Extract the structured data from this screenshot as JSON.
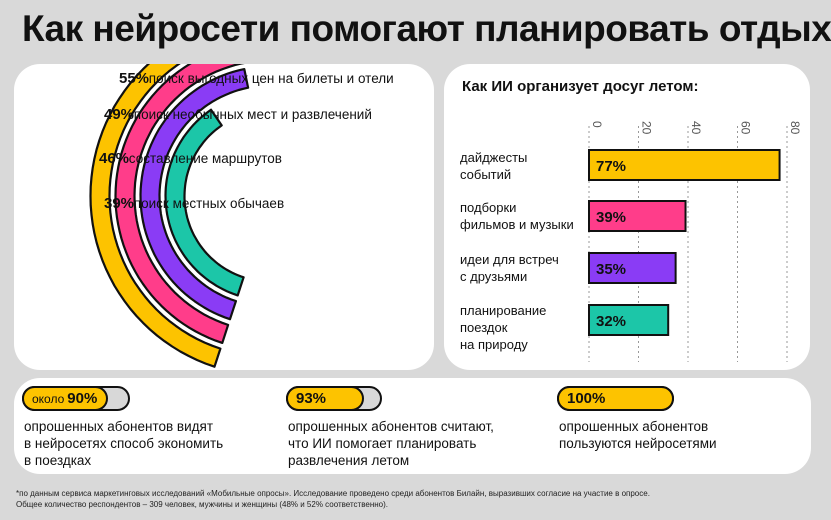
{
  "title": "Как нейросети помогают планировать отдых",
  "chart_data": [
    {
      "type": "radial bar",
      "series": [
        {
          "value": 55,
          "value_label": "55%",
          "label": "поиск выгодных цен на билеты и отели",
          "color": "#fdc300"
        },
        {
          "value": 49,
          "value_label": "49%",
          "label": "поиск необычных мест и развлечений",
          "color": "#ff3d8a"
        },
        {
          "value": 46,
          "value_label": "46%",
          "label": "составление маршрутов",
          "color": "#8a3cf5"
        },
        {
          "value": 39,
          "value_label": "39%",
          "label": "поиск местных обычаев",
          "color": "#1cc6a8"
        }
      ]
    },
    {
      "type": "bar",
      "orientation": "horizontal",
      "title": "Как ИИ организует досуг летом:",
      "xlim": [
        0,
        80
      ],
      "ticks": [
        "0",
        "20",
        "40",
        "60",
        "80"
      ],
      "categories": [
        [
          "дайджесты",
          "событий"
        ],
        [
          "подборки",
          "фильмов и музыки"
        ],
        [
          "идеи для встреч",
          "с друзьями"
        ],
        [
          "планирование",
          "поездок",
          "на природу"
        ]
      ],
      "values": [
        77,
        39,
        35,
        32
      ],
      "value_labels": [
        "77%",
        "39%",
        "35%",
        "32%"
      ],
      "colors": [
        "#fdc300",
        "#ff3d8a",
        "#8a3cf5",
        "#1cc6a8"
      ],
      "grid": "vertical dashed"
    }
  ],
  "stats": [
    {
      "prefix": "около",
      "value": "90%",
      "fraction": 0.9,
      "lines": [
        "опрошенных абонентов видят",
        "в нейросетях способ экономить",
        "в поездках"
      ]
    },
    {
      "prefix": "",
      "value": "93%",
      "fraction": 0.93,
      "lines": [
        "опрошенных абонентов считают,",
        "что ИИ помогает планировать",
        "развлечения летом"
      ]
    },
    {
      "prefix": "",
      "value": "100%",
      "fraction": 1.0,
      "lines": [
        "опрошенных абонентов",
        "пользуются нейросетями"
      ]
    }
  ],
  "footnote": [
    "*по данным сервиса маркетинговых исследований «Мобильные опросы». Исследование проведено среди абонентов Билайн, выразивших согласие на участие в опросе.",
    "Общее количество респондентов – 309 человек, мужчины и женщины (48% и 52% соответственно)."
  ]
}
